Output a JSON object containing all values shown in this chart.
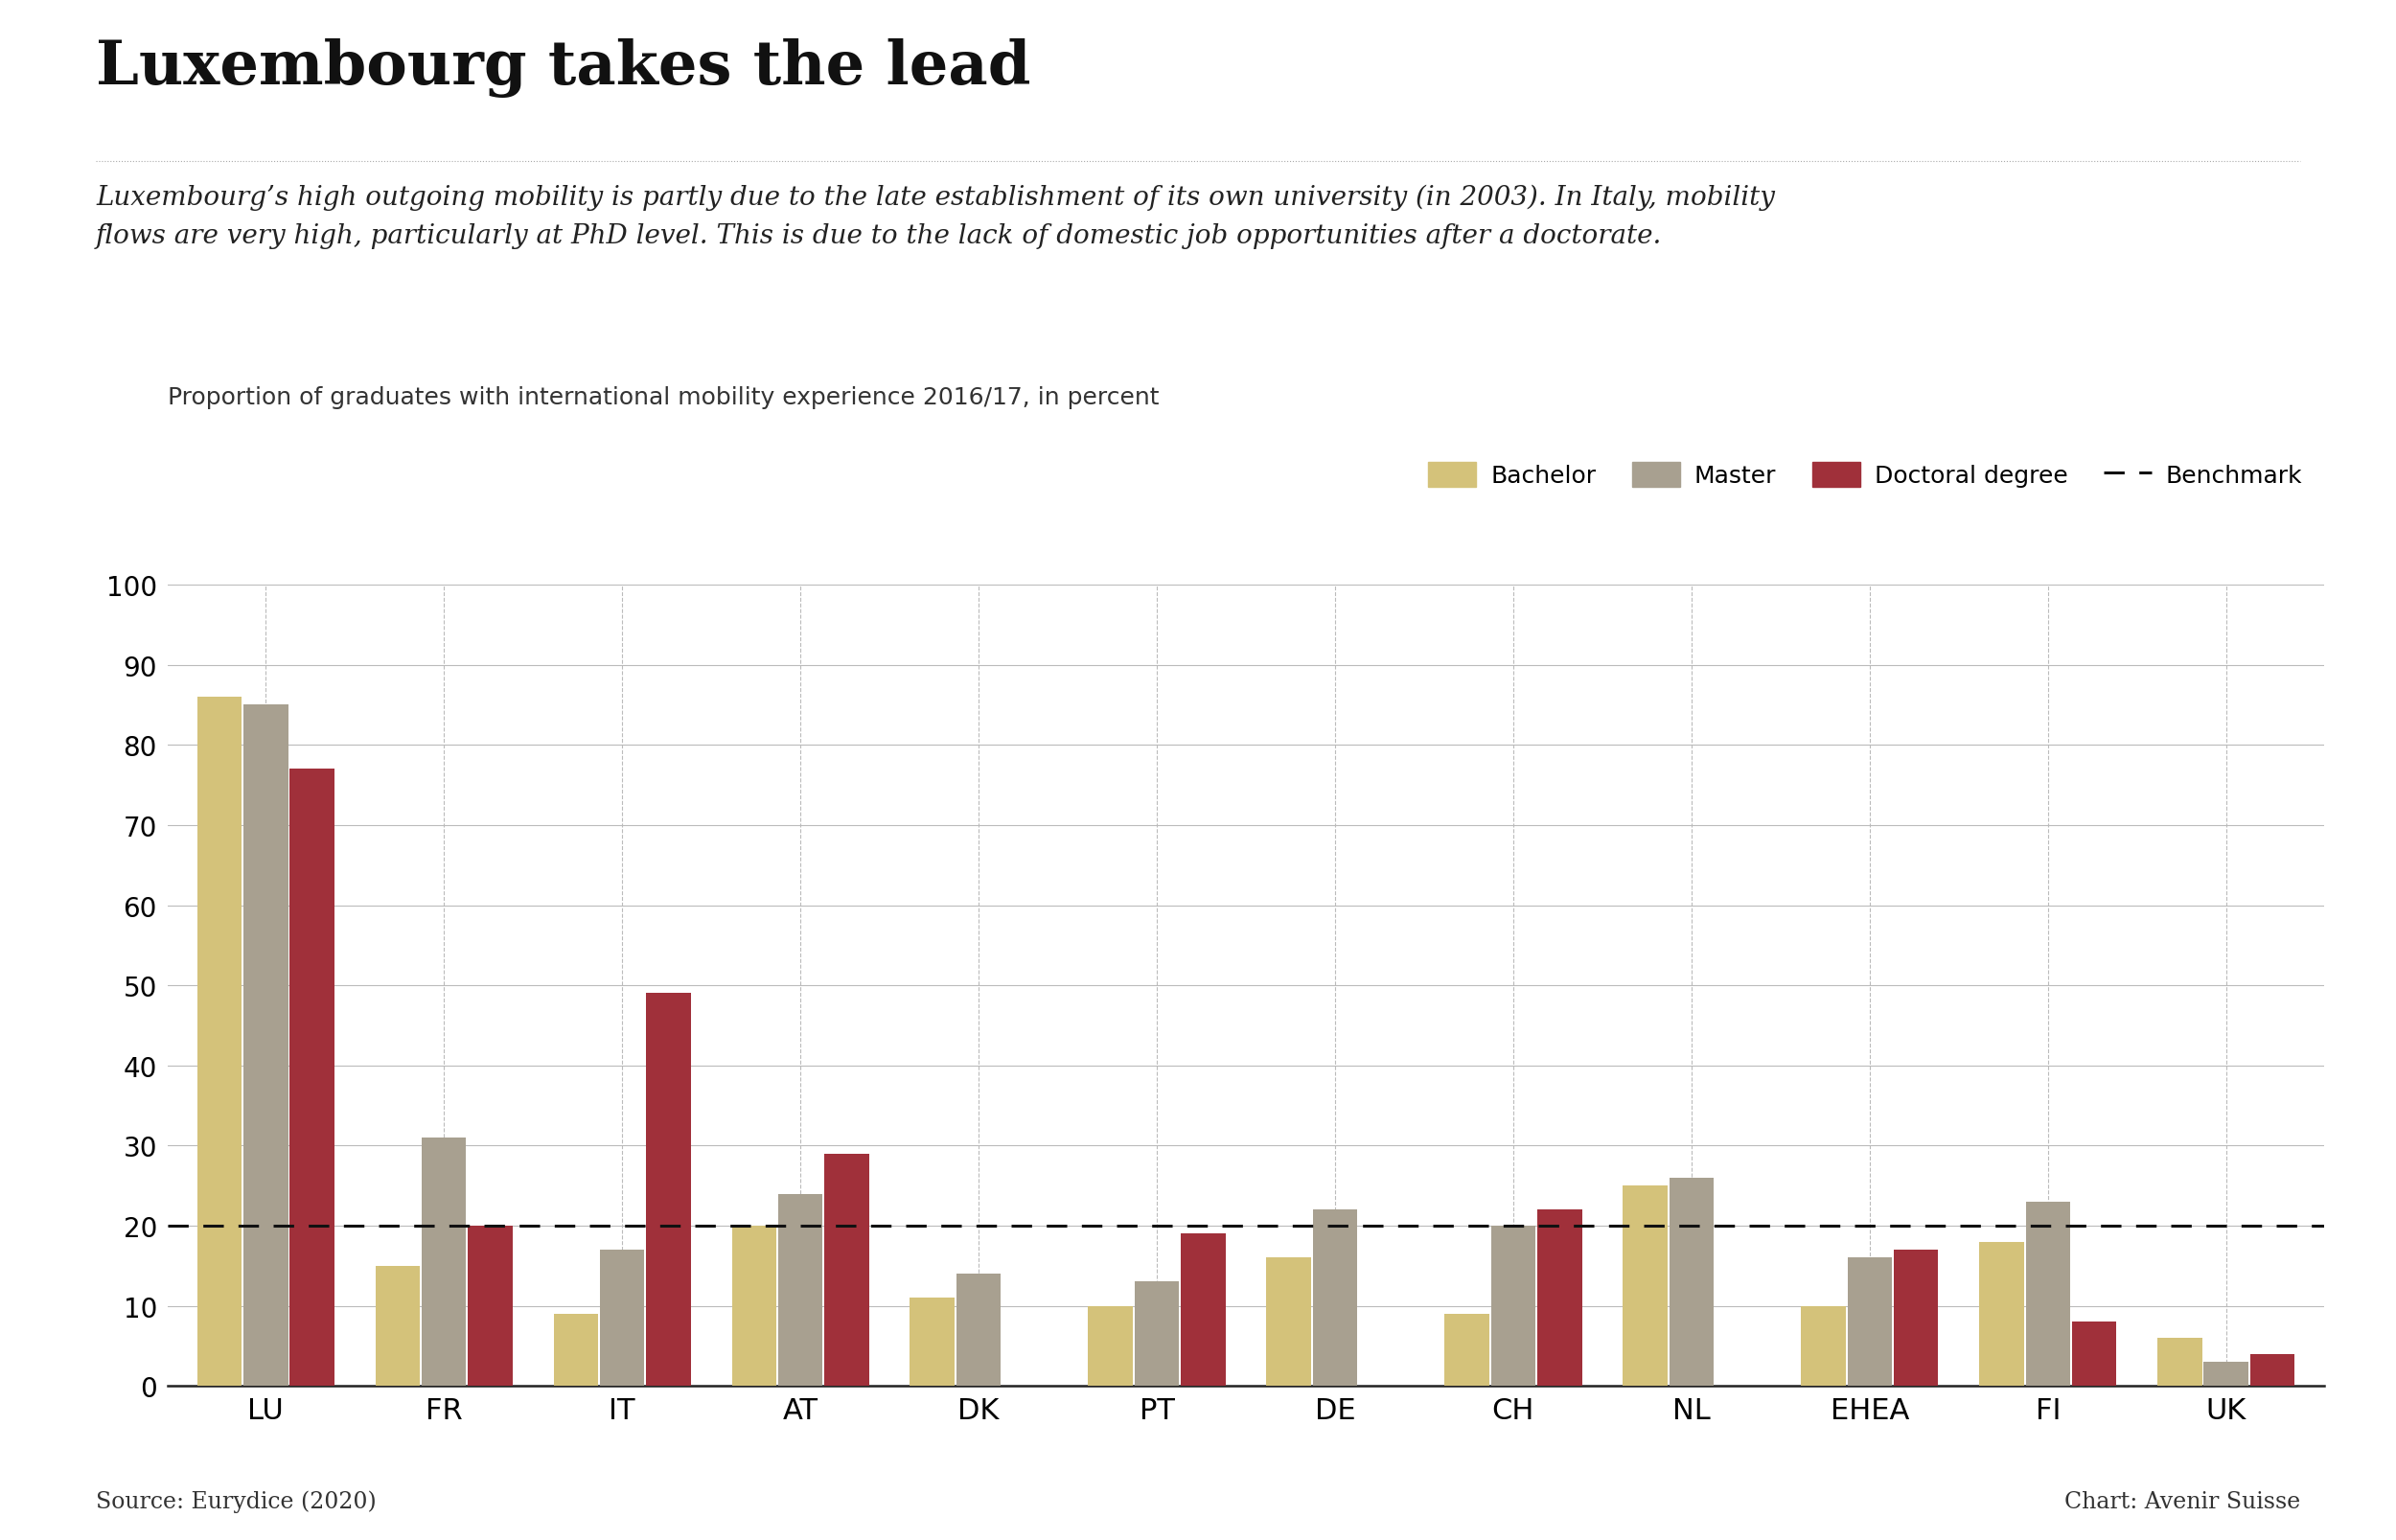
{
  "title": "Luxembourg takes the lead",
  "subtitle": "Luxembourg’s high outgoing mobility is partly due to the late establishment of its own university (in 2003). In Italy, mobility\nflows are very high, particularly at PhD level. This is due to the lack of domestic job opportunities after a doctorate.",
  "chart_label": "Proportion of graduates with international mobility experience 2016/17, in percent",
  "categories": [
    "LU",
    "FR",
    "IT",
    "AT",
    "DK",
    "PT",
    "DE",
    "CH",
    "NL",
    "EHEA",
    "FI",
    "UK"
  ],
  "bachelor": [
    86,
    15,
    9,
    20,
    11,
    10,
    16,
    9,
    25,
    10,
    18,
    6
  ],
  "master": [
    85,
    31,
    17,
    24,
    14,
    13,
    22,
    20,
    26,
    16,
    23,
    3
  ],
  "doctoral": [
    77,
    20,
    49,
    29,
    null,
    19,
    null,
    22,
    null,
    17,
    8,
    4
  ],
  "benchmark": 20,
  "bachelor_color": "#D4C27A",
  "master_color": "#A8A090",
  "doctoral_color": "#A0303A",
  "benchmark_color": "#111111",
  "background_color": "#FFFFFF",
  "source_text": "Source: Eurydice (2020)",
  "chart_credit": "Chart: Avenir Suisse",
  "ylim": [
    0,
    100
  ],
  "yticks": [
    0,
    10,
    20,
    30,
    40,
    50,
    60,
    70,
    80,
    90,
    100
  ]
}
